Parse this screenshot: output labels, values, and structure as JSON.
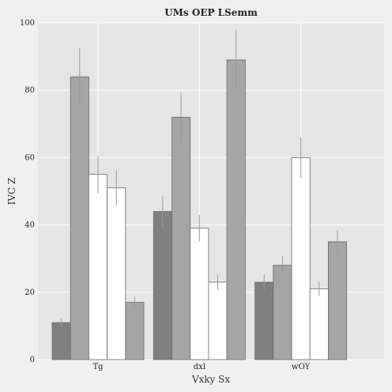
{
  "chart_data": {
    "type": "bar",
    "title": "UMs OEP LSemm",
    "xlabel": "Vxky Sx",
    "ylabel": "IVC Z",
    "ylim": [
      0,
      100
    ],
    "yticks": [
      0,
      20,
      40,
      60,
      80,
      100
    ],
    "categories": [
      "Tg",
      "dxl",
      "wOY"
    ],
    "grid": true,
    "legend": "none",
    "series": [
      {
        "values": [
          11,
          44,
          23
        ],
        "errors": [
          1.2,
          4.5,
          2.3
        ],
        "color": "#808080"
      },
      {
        "values": [
          84,
          72,
          28
        ],
        "errors": [
          8.5,
          7.3,
          2.8
        ],
        "color": "#a5a5a5"
      },
      {
        "values": [
          55,
          39,
          60
        ],
        "errors": [
          5.5,
          3.9,
          6.0
        ],
        "color": "#ffffff"
      },
      {
        "values": [
          51,
          23,
          21
        ],
        "errors": [
          5.1,
          2.3,
          2.1
        ],
        "color": "#ffffff"
      },
      {
        "values": [
          17,
          89,
          35
        ],
        "errors": [
          1.7,
          8.9,
          3.5
        ],
        "color": "#a5a5a5"
      }
    ]
  }
}
